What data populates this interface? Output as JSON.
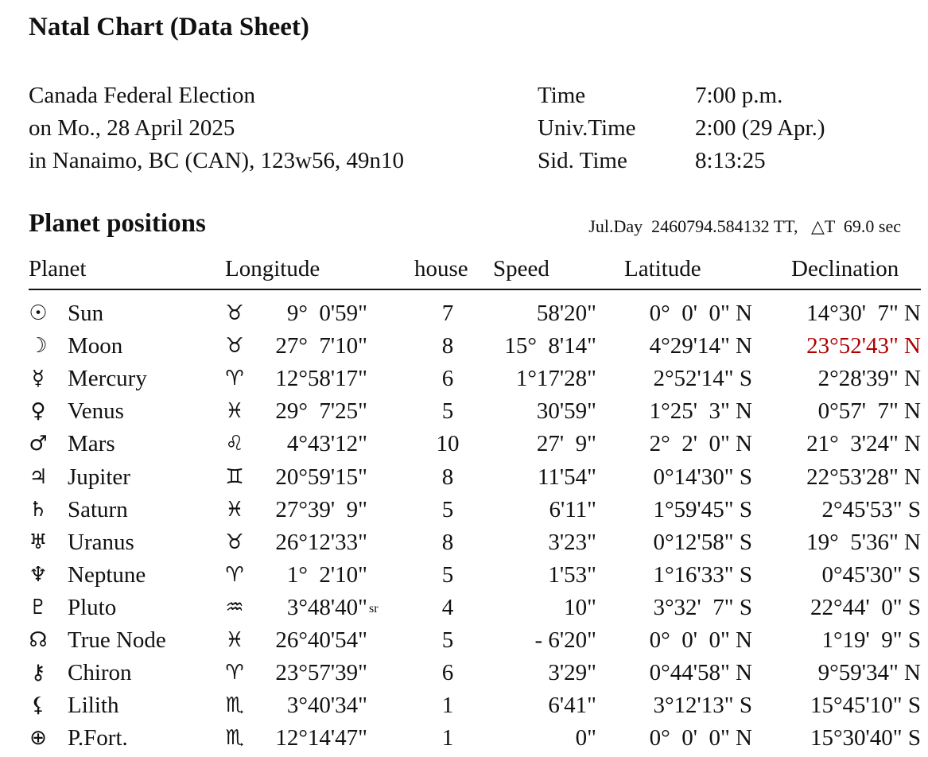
{
  "title": "Natal Chart (Data Sheet)",
  "event": {
    "lines": [
      "Canada Federal Election",
      "on Mo., 28 April 2025",
      "in Nanaimo, BC (CAN), 123w56, 49n10"
    ]
  },
  "times": {
    "labels": [
      "Time",
      "Univ.Time",
      "Sid. Time"
    ],
    "values": [
      "7:00 p.m.",
      "2:00 (29 Apr.)",
      "8:13:25"
    ]
  },
  "section_title": "Planet positions",
  "julian": "Jul.Day  2460794.584132 TT,   △T  69.0 sec",
  "columns": [
    "Planet",
    "Longitude",
    "house",
    "Speed",
    "Latitude",
    "Declination"
  ],
  "highlight_color": "#b00000",
  "rows": [
    {
      "glyph": "☉",
      "icon": "sun-icon",
      "name": "Sun",
      "sign": "♉",
      "sign_icon": "taurus-icon",
      "lon": "9°  0'59\"",
      "sr": "",
      "house": "7",
      "speed": "58'20\"",
      "lat": "0°  0'  0\" N",
      "dec": "14°30'  7\" N"
    },
    {
      "glyph": "☽",
      "icon": "moon-icon",
      "name": "Moon",
      "sign": "♉",
      "sign_icon": "taurus-icon",
      "lon": "27°  7'10\"",
      "sr": "",
      "house": "8",
      "speed": "15°  8'14\"",
      "lat": "4°29'14\" N",
      "dec": "23°52'43\" N",
      "dec_highlight": true
    },
    {
      "glyph": "☿",
      "icon": "mercury-icon",
      "name": "Mercury",
      "sign": "♈",
      "sign_icon": "aries-icon",
      "lon": "12°58'17\"",
      "sr": "",
      "house": "6",
      "speed": "1°17'28\"",
      "lat": "2°52'14\" S",
      "dec": "2°28'39\" N"
    },
    {
      "glyph": "♀",
      "icon": "venus-icon",
      "name": "Venus",
      "sign": "♓",
      "sign_icon": "pisces-icon",
      "lon": "29°  7'25\"",
      "sr": "",
      "house": "5",
      "speed": "30'59\"",
      "lat": "1°25'  3\" N",
      "dec": "0°57'  7\" N"
    },
    {
      "glyph": "♂",
      "icon": "mars-icon",
      "name": "Mars",
      "sign": "♌",
      "sign_icon": "leo-icon",
      "lon": "4°43'12\"",
      "sr": "",
      "house": "10",
      "speed": "27'  9\"",
      "lat": "2°  2'  0\" N",
      "dec": "21°  3'24\" N"
    },
    {
      "glyph": "♃",
      "icon": "jupiter-icon",
      "name": "Jupiter",
      "sign": "♊",
      "sign_icon": "gemini-icon",
      "lon": "20°59'15\"",
      "sr": "",
      "house": "8",
      "speed": "11'54\"",
      "lat": "0°14'30\" S",
      "dec": "22°53'28\" N"
    },
    {
      "glyph": "♄",
      "icon": "saturn-icon",
      "name": "Saturn",
      "sign": "♓",
      "sign_icon": "pisces-icon",
      "lon": "27°39'  9\"",
      "sr": "",
      "house": "5",
      "speed": "6'11\"",
      "lat": "1°59'45\" S",
      "dec": "2°45'53\" S"
    },
    {
      "glyph": "♅",
      "icon": "uranus-icon",
      "name": "Uranus",
      "sign": "♉",
      "sign_icon": "taurus-icon",
      "lon": "26°12'33\"",
      "sr": "",
      "house": "8",
      "speed": "3'23\"",
      "lat": "0°12'58\" S",
      "dec": "19°  5'36\" N"
    },
    {
      "glyph": "♆",
      "icon": "neptune-icon",
      "name": "Neptune",
      "sign": "♈",
      "sign_icon": "aries-icon",
      "lon": "1°  2'10\"",
      "sr": "",
      "house": "5",
      "speed": "1'53\"",
      "lat": "1°16'33\" S",
      "dec": "0°45'30\" S"
    },
    {
      "glyph": "♇",
      "icon": "pluto-icon",
      "name": "Pluto",
      "sign": "♒",
      "sign_icon": "aquarius-icon",
      "lon": "3°48'40\"",
      "sr": "sr",
      "house": "4",
      "speed": "10\"",
      "lat": "3°32'  7\" S",
      "dec": "22°44'  0\" S"
    },
    {
      "glyph": "☊",
      "icon": "true-node-icon",
      "name": "True Node",
      "sign": "♓",
      "sign_icon": "pisces-icon",
      "lon": "26°40'54\"",
      "sr": "",
      "house": "5",
      "speed": "- 6'20\"",
      "lat": "0°  0'  0\" N",
      "dec": "1°19'  9\" S"
    },
    {
      "glyph": "⚷",
      "icon": "chiron-icon",
      "name": "Chiron",
      "sign": "♈",
      "sign_icon": "aries-icon",
      "lon": "23°57'39\"",
      "sr": "",
      "house": "6",
      "speed": "3'29\"",
      "lat": "0°44'58\" N",
      "dec": "9°59'34\" N"
    },
    {
      "glyph": "⚸",
      "icon": "lilith-icon",
      "name": "Lilith",
      "sign": "♏",
      "sign_icon": "scorpio-icon",
      "lon": "3°40'34\"",
      "sr": "",
      "house": "1",
      "speed": "6'41\"",
      "lat": "3°12'13\" S",
      "dec": "15°45'10\" S"
    },
    {
      "glyph": "⊕",
      "icon": "part-of-fortune-icon",
      "name": "P.Fort.",
      "sign": "♏",
      "sign_icon": "scorpio-icon",
      "lon": "12°14'47\"",
      "sr": "",
      "house": "1",
      "speed": "0\"",
      "lat": "0°  0'  0\" N",
      "dec": "15°30'40\" S"
    }
  ]
}
